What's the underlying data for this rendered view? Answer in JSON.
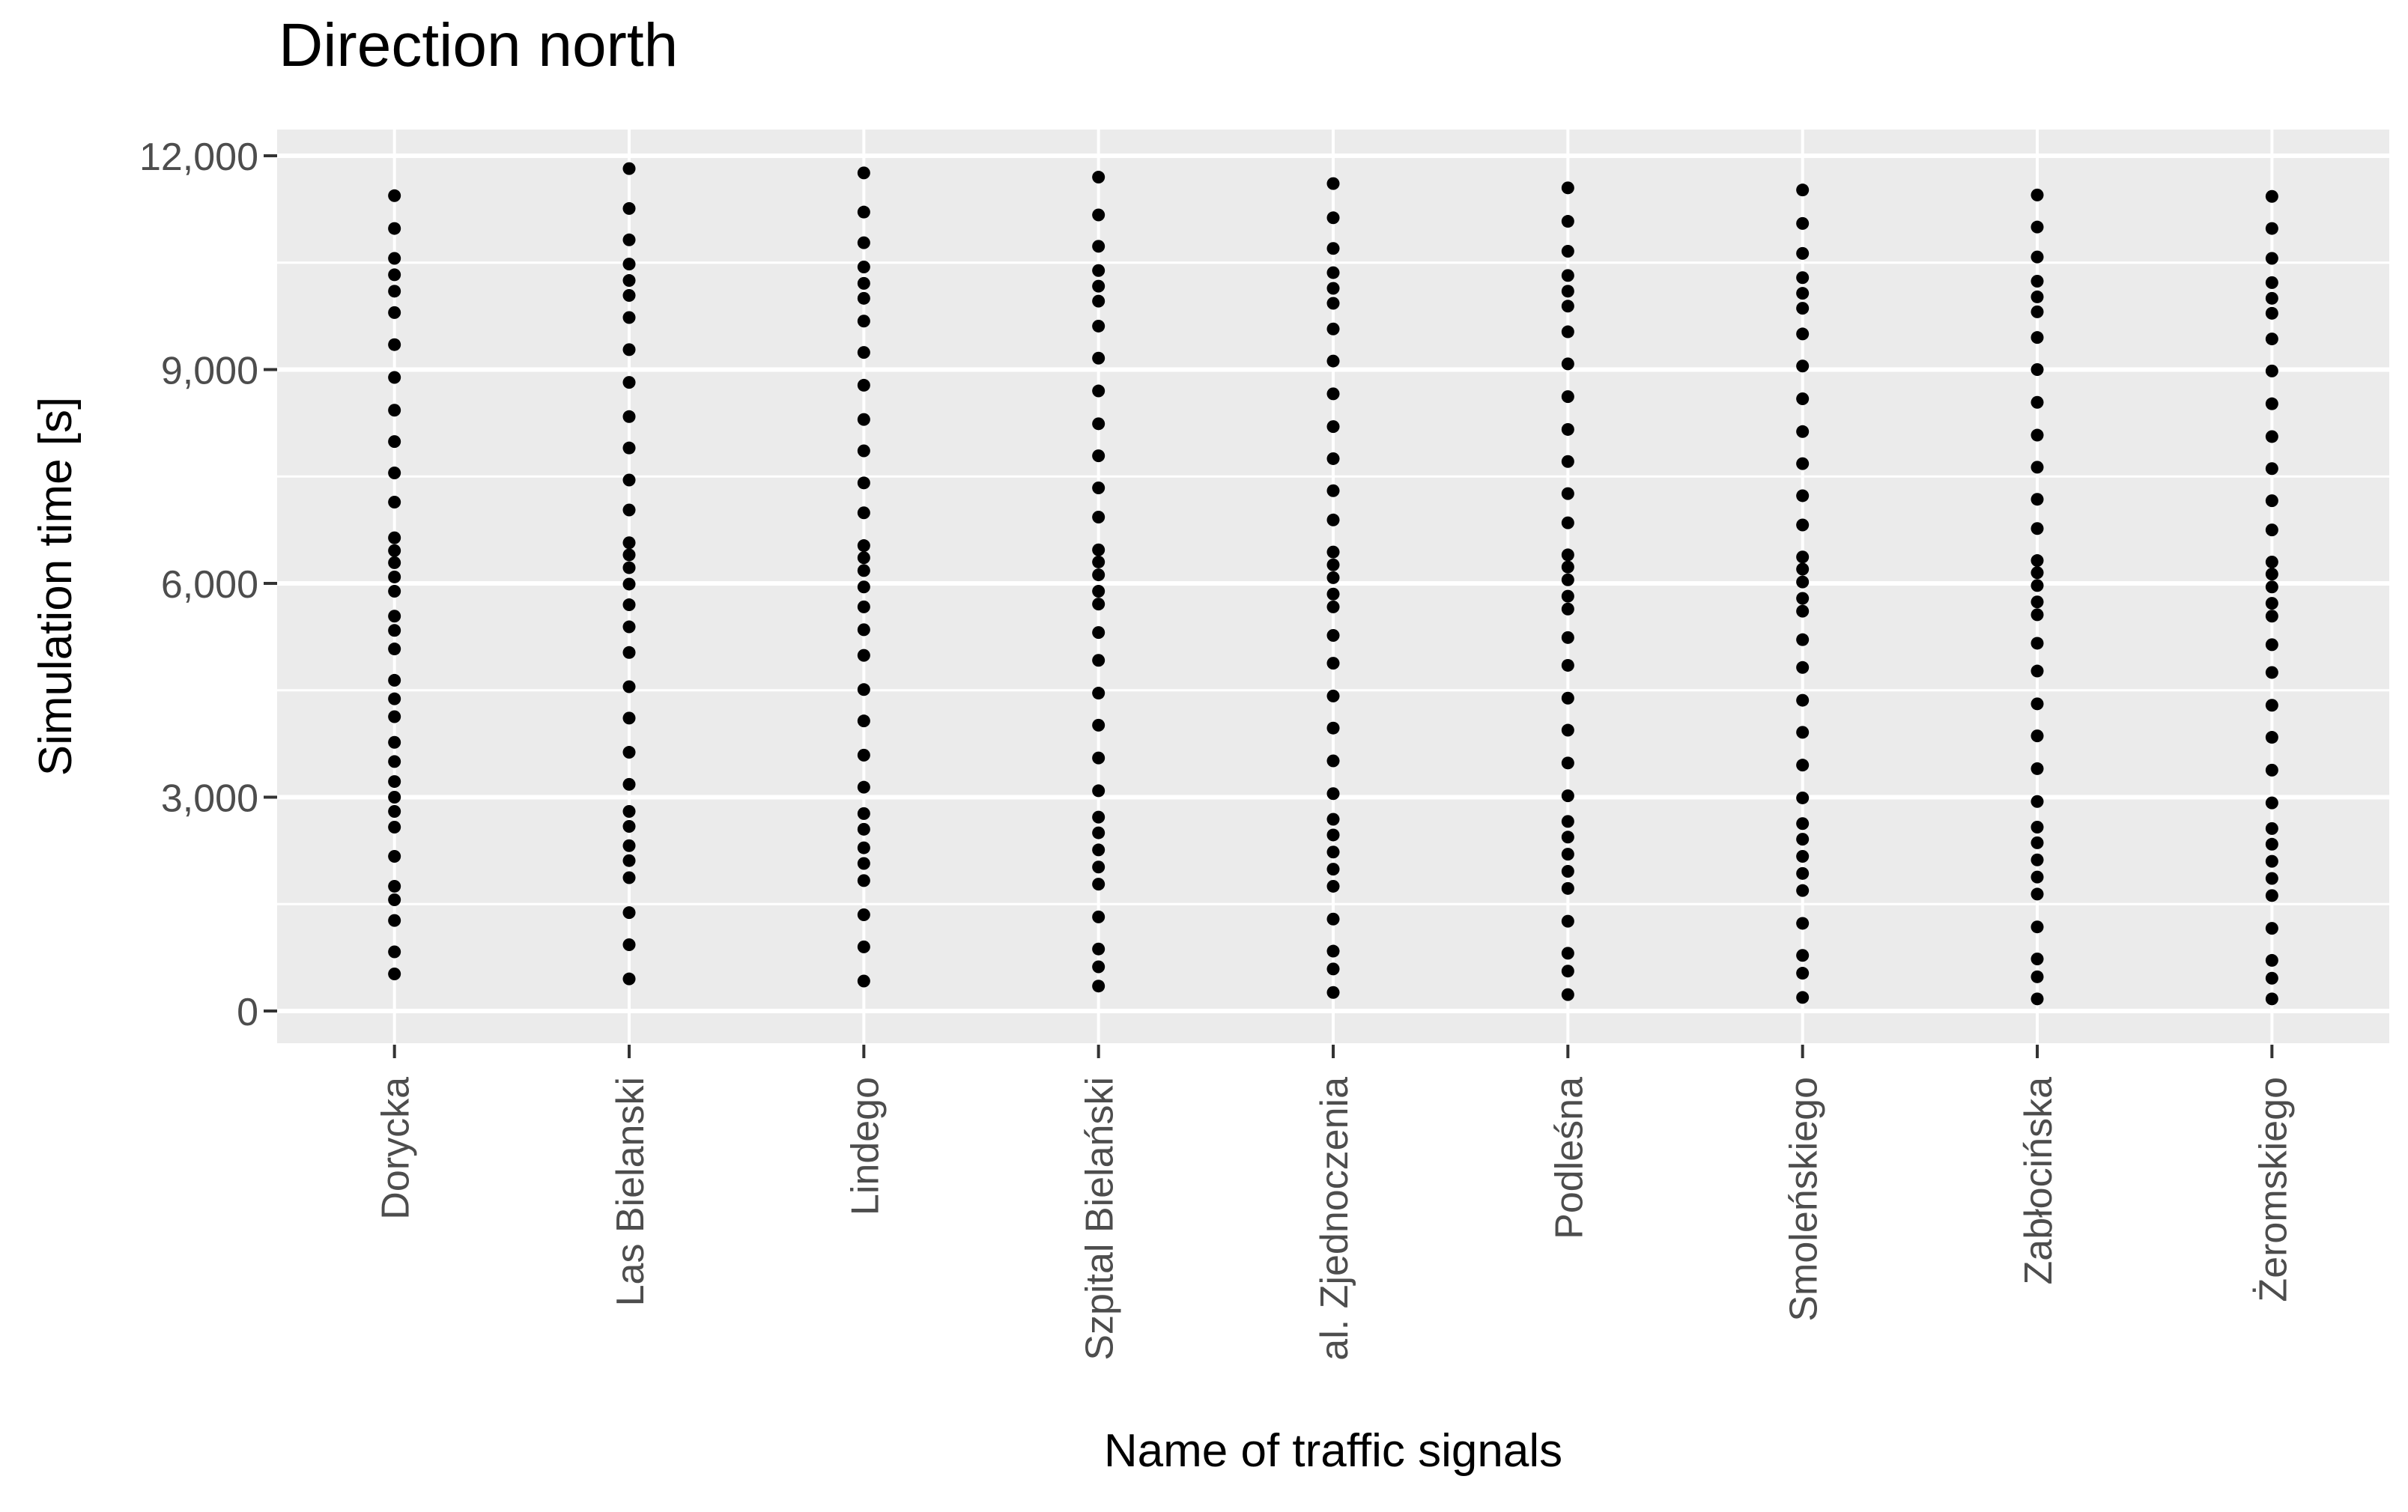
{
  "title": "Direction north",
  "axes": {
    "y_title": "Simulation time [s]",
    "x_title": "Name of traffic signals"
  },
  "colors": {
    "panel_bg": "#EBEBEB",
    "gridline": "#FFFFFF",
    "point": "#000000",
    "tick_mark": "#333333",
    "tick_text": "#4D4D4D",
    "title_text": "#000000",
    "page_bg": "#FFFFFF"
  },
  "chart_data": {
    "type": "scatter",
    "subtype": "strip-plot",
    "title": "Direction north",
    "xlabel": "Name of traffic signals",
    "ylabel": "Simulation time [s]",
    "ylim": [
      0,
      12000
    ],
    "y_major_ticks": [
      0,
      3000,
      6000,
      9000,
      12000
    ],
    "y_tick_labels": [
      "0",
      "3,000",
      "6,000",
      "9,000",
      "12,000"
    ],
    "y_minor_ticks": [
      1500,
      4500,
      7500,
      10500
    ],
    "grid": "white gridlines on grey panel",
    "legend": "none",
    "categories": [
      "Dorycka",
      "Las Bielanski",
      "Lindego",
      "Szpital Bielański",
      "al. Zjednoczenia",
      "Podleśna",
      "Smoleńskiego",
      "Zabłocińska",
      "Żeromskiego"
    ],
    "series": [
      {
        "name": "Dorycka",
        "values": [
          11440,
          10980,
          10560,
          10330,
          10100,
          9800,
          9350,
          8890,
          8430,
          7990,
          7550,
          7140,
          6640,
          6460,
          6290,
          6090,
          5890,
          5540,
          5340,
          5080,
          4640,
          4380,
          4130,
          3770,
          3500,
          3220,
          3000,
          2800,
          2580,
          2170,
          1750,
          1560,
          1270,
          830,
          520
        ]
      },
      {
        "name": "Las Bielanski",
        "values": [
          11820,
          11260,
          10820,
          10480,
          10250,
          10040,
          9730,
          9280,
          8820,
          8340,
          7900,
          7450,
          7030,
          6570,
          6400,
          6220,
          5990,
          5700,
          5390,
          5030,
          4550,
          4110,
          3630,
          3180,
          2800,
          2590,
          2320,
          2110,
          1870,
          1380,
          930,
          450
        ]
      },
      {
        "name": "Lindego",
        "values": [
          11760,
          11210,
          10780,
          10440,
          10210,
          10000,
          9680,
          9240,
          8780,
          8300,
          7860,
          7410,
          6990,
          6530,
          6360,
          6180,
          5950,
          5670,
          5350,
          4990,
          4510,
          4070,
          3590,
          3140,
          2770,
          2550,
          2290,
          2070,
          1830,
          1350,
          900,
          420
        ]
      },
      {
        "name": "Szpital Bielański",
        "values": [
          11700,
          11170,
          10730,
          10390,
          10170,
          9960,
          9610,
          9160,
          8700,
          8240,
          7790,
          7340,
          6930,
          6470,
          6300,
          6120,
          5890,
          5710,
          5310,
          4920,
          4460,
          4010,
          3550,
          3090,
          2720,
          2500,
          2260,
          2020,
          1780,
          1320,
          870,
          620,
          350
        ]
      },
      {
        "name": "al. Zjednoczenia",
        "values": [
          11610,
          11130,
          10700,
          10360,
          10140,
          9930,
          9570,
          9120,
          8660,
          8200,
          7750,
          7300,
          6890,
          6440,
          6260,
          6080,
          5850,
          5670,
          5270,
          4880,
          4420,
          3970,
          3510,
          3050,
          2690,
          2470,
          2230,
          1990,
          1750,
          1290,
          840,
          590,
          260
        ]
      },
      {
        "name": "Podleśna",
        "values": [
          11550,
          11080,
          10660,
          10320,
          10100,
          9890,
          9530,
          9080,
          8620,
          8160,
          7710,
          7260,
          6850,
          6400,
          6230,
          6050,
          5820,
          5640,
          5240,
          4850,
          4390,
          3940,
          3480,
          3020,
          2660,
          2440,
          2200,
          1960,
          1720,
          1260,
          810,
          560,
          230
        ]
      },
      {
        "name": "Smoleńskiego",
        "values": [
          11520,
          11050,
          10630,
          10290,
          10070,
          9860,
          9500,
          9050,
          8590,
          8130,
          7680,
          7230,
          6820,
          6370,
          6200,
          6020,
          5790,
          5610,
          5210,
          4820,
          4360,
          3910,
          3450,
          2990,
          2630,
          2410,
          2170,
          1930,
          1690,
          1230,
          780,
          530,
          190
        ]
      },
      {
        "name": "Zabłocińska",
        "values": [
          11450,
          11000,
          10580,
          10240,
          10020,
          9810,
          9450,
          9000,
          8540,
          8080,
          7630,
          7180,
          6770,
          6320,
          6150,
          5970,
          5740,
          5560,
          5160,
          4770,
          4310,
          3860,
          3400,
          2940,
          2580,
          2360,
          2120,
          1880,
          1640,
          1180,
          730,
          480,
          170
        ]
      },
      {
        "name": "Żeromskiego",
        "values": [
          11430,
          10980,
          10560,
          10220,
          10000,
          9790,
          9430,
          8980,
          8520,
          8060,
          7610,
          7160,
          6750,
          6300,
          6130,
          5950,
          5720,
          5540,
          5140,
          4750,
          4290,
          3840,
          3380,
          2920,
          2560,
          2340,
          2100,
          1860,
          1620,
          1160,
          710,
          460,
          170
        ]
      }
    ]
  }
}
